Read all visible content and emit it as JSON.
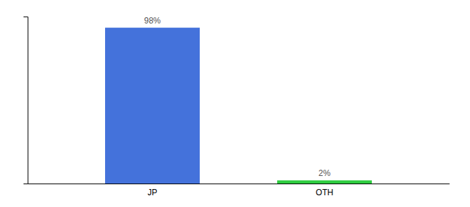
{
  "chart_data": {
    "type": "bar",
    "categories": [
      "JP",
      "OTH"
    ],
    "values": [
      98,
      2
    ],
    "value_labels": [
      "98%",
      "2%"
    ],
    "colors": [
      "#4472db",
      "#2ecc40"
    ],
    "ylim": [
      0,
      105
    ],
    "data_labels": true,
    "tick_labels": "x",
    "grid": false
  }
}
